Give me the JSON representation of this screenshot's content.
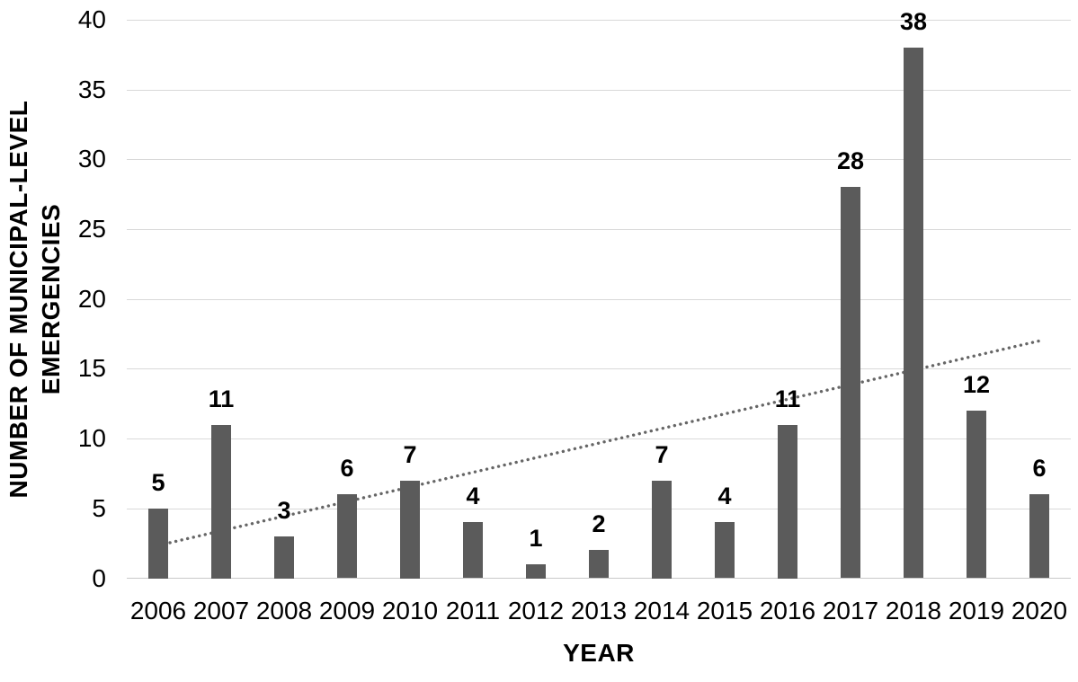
{
  "chart_data": {
    "type": "bar",
    "title": "",
    "categories": [
      "2006",
      "2007",
      "2008",
      "2009",
      "2010",
      "2011",
      "2012",
      "2013",
      "2014",
      "2015",
      "2016",
      "2017",
      "2018",
      "2019",
      "2020"
    ],
    "values": [
      5,
      11,
      3,
      6,
      7,
      4,
      1,
      2,
      7,
      4,
      11,
      28,
      38,
      12,
      6
    ],
    "xlabel": "YEAR",
    "ylabel": "NUMBER OF MUNICIPAL-LEVEL EMERGENCIES",
    "ylabel_lines": [
      "NUMBER OF MUNICIPAL-LEVEL",
      "EMERGENCIES"
    ],
    "ylim": [
      0,
      40
    ],
    "yticks": [
      40,
      35,
      30,
      25,
      20,
      15,
      10,
      5,
      0
    ],
    "grid": true,
    "legend": "none",
    "data_labels_bold": true,
    "colors": {
      "bar": "#5B5B5B",
      "gridline": "#D9D9D9",
      "baseline": "#C9C9C9",
      "trendline": "#666666",
      "text": "#000000"
    },
    "trendline": {
      "type": "linear",
      "style": "dotted",
      "start_value": 2.35,
      "end_value": 17.0
    }
  }
}
